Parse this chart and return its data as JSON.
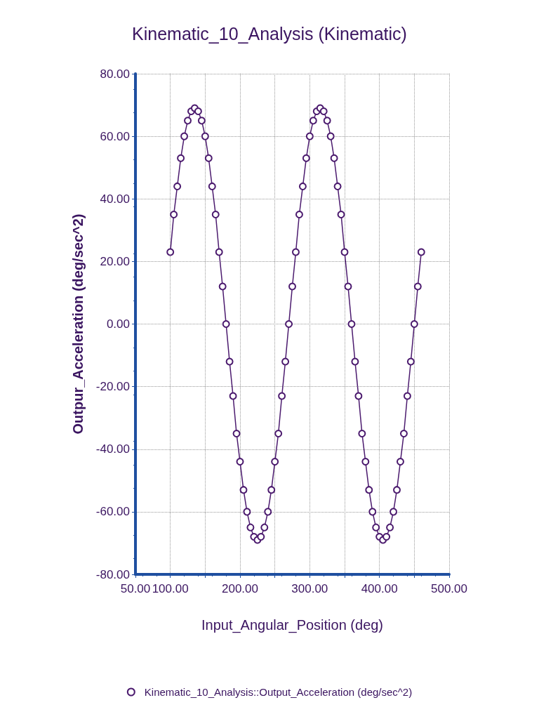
{
  "chart_data": {
    "type": "line",
    "title": "Kinematic_10_Analysis (Kinematic)",
    "xlabel": "Input_Angular_Position (deg)",
    "ylabel": "Outpur_Acceleration (deg/sec^2)",
    "xlim": [
      50,
      500
    ],
    "xticks": [
      {
        "value": 50,
        "label": "50.00"
      },
      {
        "value": 100,
        "label": "100.00"
      },
      {
        "value": 150,
        "label": null
      },
      {
        "value": 200,
        "label": "200.00"
      },
      {
        "value": 250,
        "label": null
      },
      {
        "value": 300,
        "label": "300.00"
      },
      {
        "value": 350,
        "label": null
      },
      {
        "value": 400,
        "label": "400.00"
      },
      {
        "value": 450,
        "label": null
      },
      {
        "value": 500,
        "label": "500.00"
      }
    ],
    "ylim": [
      -80,
      80
    ],
    "yticks": [
      {
        "value": -80,
        "label": "-80.00"
      },
      {
        "value": -60,
        "label": "-60.00"
      },
      {
        "value": -40,
        "label": "-40.00"
      },
      {
        "value": -20,
        "label": "-20.00"
      },
      {
        "value": 0,
        "label": "0.00"
      },
      {
        "value": 20,
        "label": "20.00"
      },
      {
        "value": 40,
        "label": "40.00"
      },
      {
        "value": 60,
        "label": "60.00"
      },
      {
        "value": 80,
        "label": "80.00"
      }
    ],
    "x": [
      100,
      105,
      110,
      115,
      120,
      125,
      130,
      135,
      140,
      145,
      150,
      155,
      160,
      165,
      170,
      175,
      180,
      185,
      190,
      195,
      200,
      205,
      210,
      215,
      220,
      225,
      230,
      235,
      240,
      245,
      250,
      255,
      260,
      265,
      270,
      275,
      280,
      285,
      290,
      295,
      300,
      305,
      310,
      315,
      320,
      325,
      330,
      335,
      340,
      345,
      350,
      355,
      360,
      365,
      370,
      375,
      380,
      385,
      390,
      395,
      400,
      405,
      410,
      415,
      420,
      425,
      430,
      435,
      440,
      445,
      450,
      455,
      460
    ],
    "series": [
      {
        "name": "Kinematic_10_Analysis::Output_Acceleration (deg/sec^2)",
        "color": "#4b1a6e",
        "values": [
          23,
          35,
          44,
          53,
          60,
          65,
          68,
          69,
          68,
          65,
          60,
          53,
          44,
          35,
          23,
          12,
          0,
          -12,
          -23,
          -35,
          -44,
          -53,
          -60,
          -65,
          -68,
          -69,
          -68,
          -65,
          -60,
          -53,
          -44,
          -35,
          -23,
          -12,
          0,
          12,
          23,
          35,
          44,
          53,
          60,
          65,
          68,
          69,
          68,
          65,
          60,
          53,
          44,
          35,
          23,
          12,
          0,
          -12,
          -23,
          -35,
          -44,
          -53,
          -60,
          -65,
          -68,
          -69,
          -68,
          -65,
          -60,
          -53,
          -44,
          -35,
          -23,
          -12,
          0,
          12,
          23
        ]
      }
    ],
    "grid": true,
    "legend": "bottom",
    "marker": "circle",
    "line_style": "solid"
  }
}
